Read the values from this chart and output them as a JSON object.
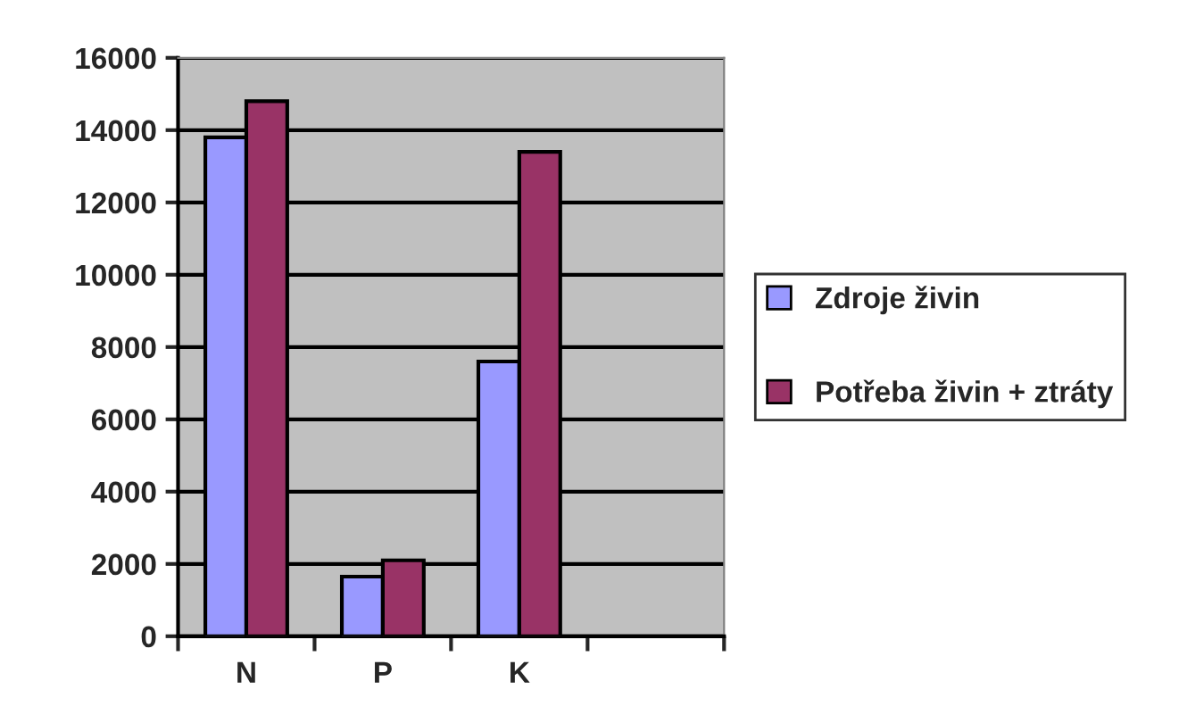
{
  "chart_data": {
    "type": "bar",
    "categories": [
      "N",
      "P",
      "K",
      null
    ],
    "series": [
      {
        "name": "Zdroje živin",
        "color": "#9999ff",
        "values": [
          13800,
          1650,
          7600,
          null
        ]
      },
      {
        "name": "Potřeba živin + ztráty",
        "color": "#993366",
        "values": [
          14800,
          2100,
          13400,
          null
        ]
      }
    ],
    "ylim": [
      0,
      16000
    ],
    "yticks": [
      0,
      2000,
      4000,
      6000,
      8000,
      10000,
      12000,
      14000,
      16000
    ],
    "grid": "y",
    "legend": "right"
  }
}
